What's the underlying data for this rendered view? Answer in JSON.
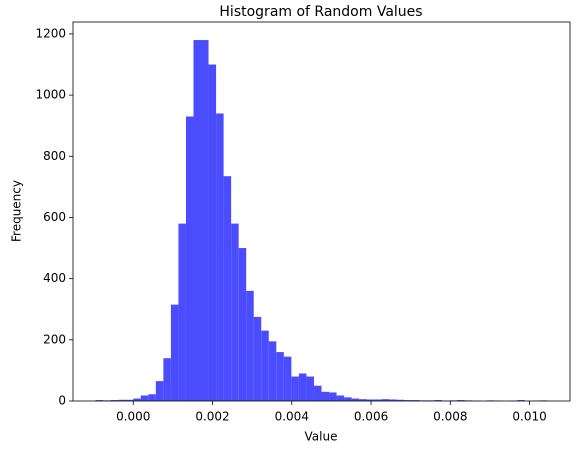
{
  "chart_data": {
    "type": "histogram",
    "title": "Histogram of Random Values",
    "xlabel": "Value",
    "ylabel": "Frequency",
    "bins": [
      -0.00095,
      -0.00076,
      -0.00057,
      -0.00038,
      -0.00019,
      0,
      0.00019,
      0.00038,
      0.00057,
      0.00076,
      0.00095,
      0.00114,
      0.00133,
      0.00152,
      0.00171,
      0.0019,
      0.00209,
      0.00228,
      0.00247,
      0.00266,
      0.00285,
      0.00304,
      0.00323,
      0.00342,
      0.00361,
      0.0038,
      0.00399,
      0.00418,
      0.00437,
      0.00456,
      0.00475,
      0.00494,
      0.00513,
      0.00532,
      0.00551,
      0.0057,
      0.00589,
      0.00608,
      0.00627,
      0.00646,
      0.00665,
      0.00684,
      0.00703,
      0.00722,
      0.00741,
      0.0076,
      0.00779,
      0.00798,
      0.00817,
      0.00836,
      0.00855,
      0.00874,
      0.00893,
      0.00912,
      0.00931,
      0.0095,
      0.00969,
      0.00988,
      0.01007,
      0.01026,
      0.01045
    ],
    "values": [
      3,
      2,
      3,
      4,
      4,
      8,
      18,
      22,
      65,
      140,
      315,
      580,
      930,
      1180,
      1180,
      1100,
      940,
      735,
      580,
      500,
      360,
      275,
      230,
      195,
      160,
      145,
      80,
      90,
      80,
      50,
      30,
      28,
      18,
      12,
      8,
      6,
      5,
      5,
      6,
      5,
      4,
      3,
      3,
      2,
      2,
      3,
      1,
      2,
      3,
      2,
      1,
      0,
      2,
      1,
      0,
      1,
      3,
      0,
      1,
      2
    ],
    "color": "#4c4cff",
    "xlim": [
      -0.00152,
      0.01102
    ],
    "xticks": [
      {
        "value": 0,
        "label": "0.000"
      },
      {
        "value": 0.002,
        "label": "0.002"
      },
      {
        "value": 0.004,
        "label": "0.004"
      },
      {
        "value": 0.006,
        "label": "0.006"
      },
      {
        "value": 0.008,
        "label": "0.008"
      },
      {
        "value": 0.01,
        "label": "0.010"
      }
    ],
    "ylim": [
      0,
      1239
    ],
    "yticks": [
      0,
      200,
      400,
      600,
      800,
      1000,
      1200
    ],
    "grid": false
  }
}
